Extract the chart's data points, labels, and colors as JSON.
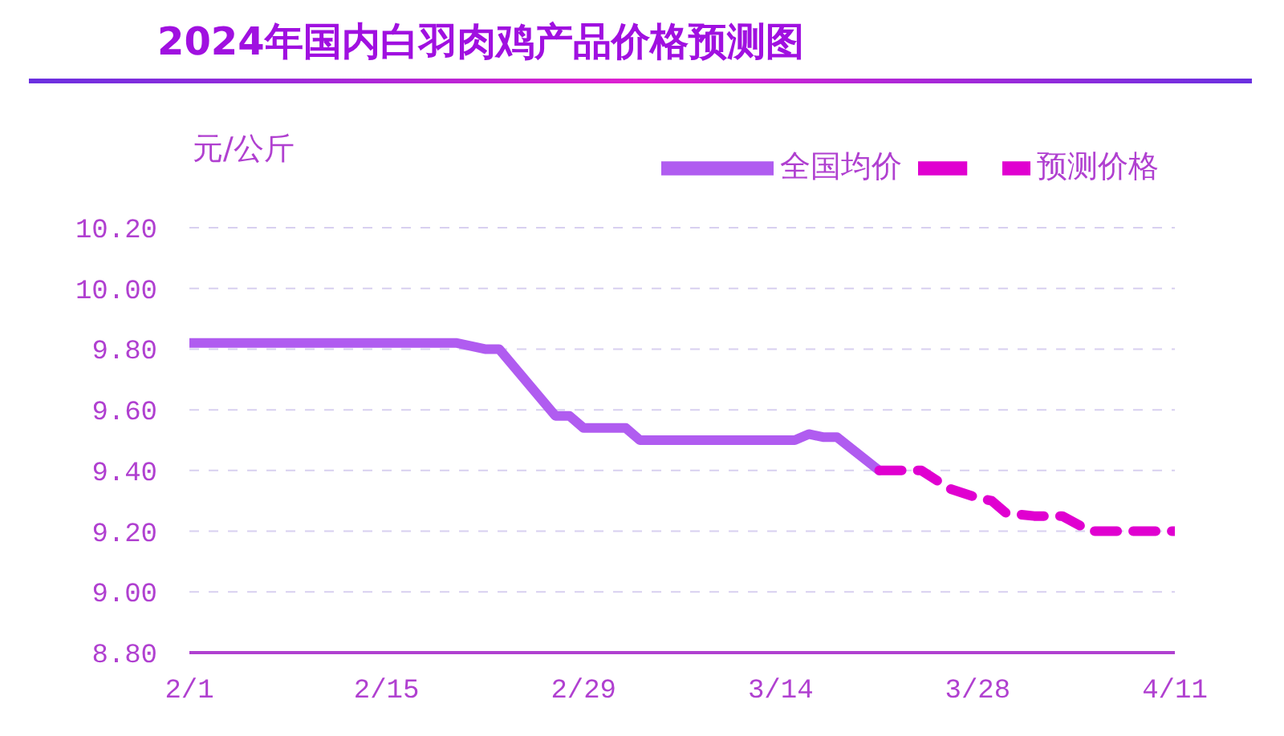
{
  "chart_data": {
    "type": "line",
    "title": "2024年国内白羽肉鸡产品价格预测图",
    "ylabel": "元/公斤",
    "ylim": [
      8.8,
      10.2
    ],
    "yticks": [
      {
        "value": 8.8,
        "label": "8.80"
      },
      {
        "value": 9,
        "label": "9.00"
      },
      {
        "value": 9.2,
        "label": "9.20"
      },
      {
        "value": 9.4,
        "label": "9.40"
      },
      {
        "value": 9.6,
        "label": "9.60"
      },
      {
        "value": 9.8,
        "label": "9.80"
      },
      {
        "value": 10,
        "label": "10.00"
      },
      {
        "value": 10.2,
        "label": "10.20"
      }
    ],
    "xlim": [
      "--02-01",
      "--04-11"
    ],
    "xticks": [
      {
        "value": "--02-01",
        "label": "2/1"
      },
      {
        "value": "--02-15",
        "label": "2/15"
      },
      {
        "value": "--02-29",
        "label": "2/29"
      },
      {
        "value": "--03-14",
        "label": "3/14"
      },
      {
        "value": "--03-28",
        "label": "3/28"
      },
      {
        "value": "--04-11",
        "label": "4/11"
      }
    ],
    "grid": "y",
    "legend": "top right",
    "marker": "none",
    "series": [
      {
        "name": "全国均价",
        "color": "#b05cf0",
        "line_style": "solid",
        "x": [
          "--02-01",
          "--02-20",
          "--02-22",
          "--02-23",
          "--02-27",
          "--02-28",
          "--02-29",
          "--03-03",
          "--03-04",
          "--03-15",
          "--03-16",
          "--03-17",
          "--03-18",
          "--03-21"
        ],
        "values": [
          9.82,
          9.82,
          9.8,
          9.8,
          9.58,
          9.58,
          9.54,
          9.54,
          9.5,
          9.5,
          9.52,
          9.51,
          9.51,
          9.4
        ]
      },
      {
        "name": "预测价格",
        "color": "#e000d0",
        "line_style": "dashed",
        "x": [
          "--03-21",
          "--03-24",
          "--03-26",
          "--03-28",
          "--03-29",
          "--03-30",
          "--04-01",
          "--04-03",
          "--04-05",
          "--04-11"
        ],
        "values": [
          9.4,
          9.4,
          9.34,
          9.31,
          9.3,
          9.26,
          9.25,
          9.25,
          9.2,
          9.2
        ]
      }
    ]
  }
}
